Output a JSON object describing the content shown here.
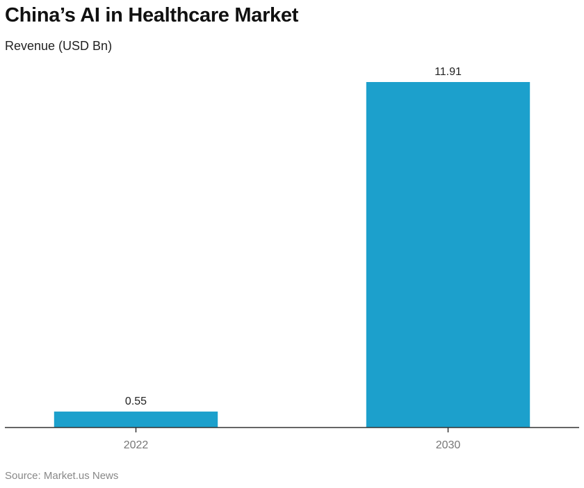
{
  "chart_data": {
    "type": "bar",
    "title": "China’s AI in Healthcare Market",
    "subtitle": "Revenue (USD Bn)",
    "xlabel": "",
    "ylabel": "Revenue (USD Bn)",
    "categories": [
      "2022",
      "2030"
    ],
    "values": [
      0.55,
      11.91
    ],
    "value_labels": [
      "0.55",
      "11.91"
    ],
    "ylim": [
      0,
      11.91
    ],
    "grid": false,
    "legend": "none",
    "bar_color": "#1ca0cc",
    "source": "Source: Market.us News"
  }
}
